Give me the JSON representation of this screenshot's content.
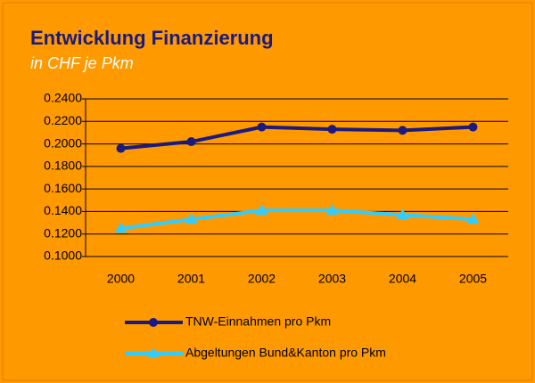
{
  "chart_data": {
    "type": "line",
    "title": "Entwicklung Finanzierung",
    "subtitle": "in CHF je Pkm",
    "categories": [
      "2000",
      "2001",
      "2002",
      "2003",
      "2004",
      "2005"
    ],
    "series": [
      {
        "name": "TNW-Einnahmen pro Pkm",
        "color": "#1a1a80",
        "marker": "circle",
        "values": [
          0.196,
          0.202,
          0.215,
          0.213,
          0.212,
          0.215
        ]
      },
      {
        "name": "Abgeltungen Bund&Kanton pro Pkm",
        "color": "#33ccff",
        "marker": "triangle",
        "values": [
          0.125,
          0.133,
          0.141,
          0.141,
          0.137,
          0.133
        ]
      }
    ],
    "ylim": [
      0.1,
      0.24
    ],
    "yticks": [
      {
        "value": 0.1,
        "label": "0.1000"
      },
      {
        "value": 0.12,
        "label": "0.1200"
      },
      {
        "value": 0.14,
        "label": "0.1400"
      },
      {
        "value": 0.16,
        "label": "0.1600"
      },
      {
        "value": 0.18,
        "label": "0.1800"
      },
      {
        "value": 0.2,
        "label": "0.2000"
      },
      {
        "value": 0.22,
        "label": "0.2200"
      },
      {
        "value": 0.24,
        "label": "0.2400"
      }
    ],
    "grid": true,
    "legend": "bottom"
  }
}
